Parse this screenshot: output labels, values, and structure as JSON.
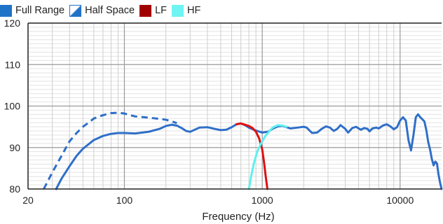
{
  "chart_data": {
    "type": "line",
    "title": "",
    "xlabel": "Frequency (Hz)",
    "ylabel": "",
    "xscale": "log",
    "xlim": [
      20,
      20000
    ],
    "ylim": [
      80,
      120
    ],
    "x_ticks": [
      20,
      100,
      1000,
      10000
    ],
    "x_tick_labels": [
      "20",
      "100",
      "1000",
      "10000"
    ],
    "y_ticks": [
      80,
      90,
      100,
      110,
      120
    ],
    "y_tick_labels": [
      "80",
      "90",
      "100",
      "110",
      "120"
    ],
    "grid": true,
    "legend_position": "top-left",
    "legend": [
      {
        "name": "Full Range",
        "color": "#1f73c7",
        "swatch": "solid"
      },
      {
        "name": "Half Space",
        "color": "#1f73c7",
        "swatch": "half"
      },
      {
        "name": "LF",
        "color": "#a00000",
        "swatch": "solid"
      },
      {
        "name": "HF",
        "color": "#6ff3f3",
        "swatch": "solid"
      }
    ],
    "series": [
      {
        "name": "Half Space",
        "color": "#2f6fc8",
        "dashed": true,
        "points": [
          [
            26,
            80
          ],
          [
            30,
            84
          ],
          [
            35,
            88
          ],
          [
            40,
            91.5
          ],
          [
            45,
            93.5
          ],
          [
            50,
            95
          ],
          [
            55,
            96
          ],
          [
            60,
            97
          ],
          [
            70,
            97.8
          ],
          [
            80,
            98.3
          ],
          [
            90,
            98.4
          ],
          [
            100,
            98.2
          ],
          [
            110,
            97.8
          ],
          [
            120,
            97.5
          ],
          [
            140,
            97.3
          ],
          [
            160,
            97.1
          ],
          [
            180,
            96.9
          ],
          [
            200,
            96.7
          ],
          [
            220,
            96.3
          ],
          [
            240,
            95.9
          ]
        ]
      },
      {
        "name": "Full Range",
        "color": "#2f6fc8",
        "dashed": false,
        "points": [
          [
            32,
            80
          ],
          [
            35,
            82.5
          ],
          [
            40,
            85.5
          ],
          [
            45,
            88
          ],
          [
            50,
            89.7
          ],
          [
            60,
            91.8
          ],
          [
            70,
            92.8
          ],
          [
            80,
            93.3
          ],
          [
            90,
            93.5
          ],
          [
            100,
            93.5
          ],
          [
            120,
            93.4
          ],
          [
            150,
            93.8
          ],
          [
            180,
            94.5
          ],
          [
            200,
            95.2
          ],
          [
            220,
            95.5
          ],
          [
            240,
            95.3
          ],
          [
            260,
            94.7
          ],
          [
            280,
            94
          ],
          [
            300,
            93.8
          ],
          [
            350,
            94.8
          ],
          [
            400,
            94.9
          ],
          [
            450,
            94.5
          ],
          [
            500,
            94.2
          ],
          [
            550,
            94.3
          ],
          [
            600,
            94.9
          ],
          [
            650,
            95.6
          ],
          [
            700,
            95.8
          ],
          [
            750,
            95.4
          ],
          [
            800,
            94.8
          ],
          [
            900,
            94.1
          ],
          [
            1000,
            93.6
          ],
          [
            1100,
            93.8
          ],
          [
            1200,
            94.6
          ],
          [
            1300,
            95.1
          ],
          [
            1400,
            95.2
          ],
          [
            1500,
            94.9
          ],
          [
            1600,
            94.6
          ],
          [
            1800,
            94.8
          ],
          [
            2000,
            95
          ],
          [
            2100,
            94.8
          ],
          [
            2300,
            93.5
          ],
          [
            2500,
            93.6
          ],
          [
            2700,
            94.5
          ],
          [
            2900,
            95.1
          ],
          [
            3100,
            94.8
          ],
          [
            3300,
            94
          ],
          [
            3500,
            94.5
          ],
          [
            3700,
            95.4
          ],
          [
            4000,
            94.5
          ],
          [
            4200,
            93.6
          ],
          [
            4500,
            94.7
          ],
          [
            4800,
            95
          ],
          [
            5000,
            94.6
          ],
          [
            5200,
            94.3
          ],
          [
            5500,
            94.7
          ],
          [
            5800,
            94.5
          ],
          [
            6000,
            93.9
          ],
          [
            6300,
            94.6
          ],
          [
            6700,
            94.8
          ],
          [
            7000,
            94.6
          ],
          [
            7500,
            95.3
          ],
          [
            8000,
            95.6
          ],
          [
            8500,
            95.1
          ],
          [
            9000,
            94.4
          ],
          [
            9500,
            94.9
          ],
          [
            10000,
            96.5
          ],
          [
            10500,
            97.3
          ],
          [
            11000,
            96.5
          ],
          [
            11500,
            91.8
          ],
          [
            12000,
            89.3
          ],
          [
            12500,
            93
          ],
          [
            13000,
            97.3
          ],
          [
            13500,
            98
          ],
          [
            14000,
            97.3
          ],
          [
            14500,
            96.8
          ],
          [
            15000,
            96.3
          ],
          [
            15500,
            94.2
          ],
          [
            16000,
            91.3
          ],
          [
            16500,
            89.5
          ],
          [
            17000,
            87.2
          ],
          [
            17500,
            85.7
          ],
          [
            18000,
            86.6
          ],
          [
            18500,
            86.2
          ],
          [
            19000,
            83.5
          ],
          [
            19500,
            81.5
          ],
          [
            20000,
            80
          ]
        ]
      },
      {
        "name": "LF",
        "color": "#e01010",
        "dashed": false,
        "points": [
          [
            650,
            95.6
          ],
          [
            700,
            95.8
          ],
          [
            750,
            95.5
          ],
          [
            800,
            95.2
          ],
          [
            850,
            94.7
          ],
          [
            900,
            93.8
          ],
          [
            950,
            92.2
          ],
          [
            1000,
            89.5
          ],
          [
            1030,
            86.5
          ],
          [
            1060,
            83
          ],
          [
            1090,
            80
          ]
        ]
      },
      {
        "name": "HF",
        "color": "#5ff0f0",
        "dashed": false,
        "points": [
          [
            800,
            80
          ],
          [
            830,
            83
          ],
          [
            870,
            86.2
          ],
          [
            920,
            89
          ],
          [
            980,
            91
          ],
          [
            1050,
            92.7
          ],
          [
            1100,
            93.5
          ],
          [
            1150,
            94.3
          ],
          [
            1200,
            94.9
          ],
          [
            1300,
            95.4
          ],
          [
            1400,
            95.3
          ],
          [
            1500,
            95
          ]
        ]
      }
    ]
  }
}
